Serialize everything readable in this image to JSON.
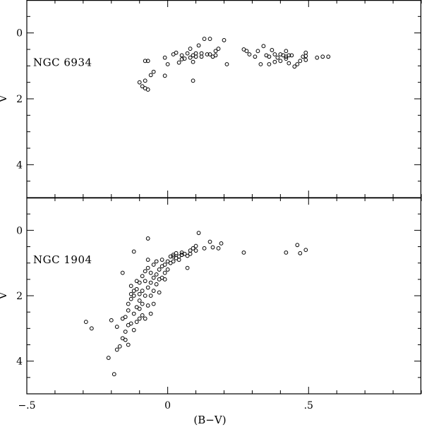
{
  "chart_data": [
    {
      "type": "scatter",
      "panel_label": "NGC 6934",
      "xlabel": "",
      "ylabel": "V",
      "xlim": [
        -0.5,
        0.9
      ],
      "ylim": [
        5,
        -1
      ],
      "y_ticks": [
        0,
        2,
        4
      ],
      "y_minor_step": 0.5,
      "x_ticks": [
        -0.5,
        0,
        0.5
      ],
      "x_minor_step": 0.1,
      "marker": "open-circle",
      "points": [
        [
          -0.08,
          0.85
        ],
        [
          -0.07,
          0.85
        ],
        [
          -0.1,
          1.5
        ],
        [
          -0.09,
          1.62
        ],
        [
          -0.08,
          1.68
        ],
        [
          -0.07,
          1.72
        ],
        [
          -0.08,
          1.45
        ],
        [
          -0.06,
          1.28
        ],
        [
          -0.05,
          1.18
        ],
        [
          -0.01,
          1.3
        ],
        [
          -0.01,
          0.75
        ],
        [
          0.0,
          0.95
        ],
        [
          0.02,
          0.65
        ],
        [
          0.03,
          0.6
        ],
        [
          0.04,
          0.9
        ],
        [
          0.05,
          0.68
        ],
        [
          0.05,
          0.8
        ],
        [
          0.06,
          0.78
        ],
        [
          0.07,
          0.62
        ],
        [
          0.08,
          0.48
        ],
        [
          0.08,
          0.75
        ],
        [
          0.09,
          0.68
        ],
        [
          0.09,
          0.88
        ],
        [
          0.1,
          0.62
        ],
        [
          0.1,
          0.72
        ],
        [
          0.11,
          0.38
        ],
        [
          0.12,
          0.62
        ],
        [
          0.12,
          0.72
        ],
        [
          0.13,
          0.18
        ],
        [
          0.14,
          0.65
        ],
        [
          0.15,
          0.18
        ],
        [
          0.15,
          0.65
        ],
        [
          0.16,
          0.72
        ],
        [
          0.17,
          0.55
        ],
        [
          0.17,
          0.68
        ],
        [
          0.18,
          0.48
        ],
        [
          0.2,
          0.22
        ],
        [
          0.21,
          0.95
        ],
        [
          0.09,
          1.45
        ],
        [
          0.27,
          0.5
        ],
        [
          0.28,
          0.55
        ],
        [
          0.29,
          0.65
        ],
        [
          0.31,
          0.72
        ],
        [
          0.32,
          0.55
        ],
        [
          0.33,
          0.95
        ],
        [
          0.34,
          0.4
        ],
        [
          0.35,
          0.68
        ],
        [
          0.36,
          0.72
        ],
        [
          0.36,
          0.95
        ],
        [
          0.37,
          0.52
        ],
        [
          0.38,
          0.65
        ],
        [
          0.38,
          0.88
        ],
        [
          0.39,
          0.75
        ],
        [
          0.4,
          0.65
        ],
        [
          0.4,
          0.85
        ],
        [
          0.41,
          0.68
        ],
        [
          0.42,
          0.55
        ],
        [
          0.42,
          0.72
        ],
        [
          0.42,
          0.78
        ],
        [
          0.43,
          0.68
        ],
        [
          0.43,
          0.92
        ],
        [
          0.44,
          0.68
        ],
        [
          0.45,
          1.02
        ],
        [
          0.46,
          0.95
        ],
        [
          0.47,
          0.85
        ],
        [
          0.48,
          0.72
        ],
        [
          0.49,
          0.6
        ],
        [
          0.49,
          0.82
        ],
        [
          0.49,
          0.7
        ],
        [
          0.53,
          0.75
        ],
        [
          0.55,
          0.72
        ],
        [
          0.57,
          0.72
        ]
      ]
    },
    {
      "type": "scatter",
      "panel_label": "NGC 1904",
      "xlabel": "(B−V)",
      "ylabel": "V",
      "xlim": [
        -0.5,
        0.9
      ],
      "ylim": [
        5,
        -1
      ],
      "y_ticks": [
        0,
        2,
        4
      ],
      "y_minor_step": 0.5,
      "x_ticks": [
        -0.5,
        0,
        0.5
      ],
      "x_minor_step": 0.1,
      "marker": "open-circle",
      "points": [
        [
          -0.29,
          2.8
        ],
        [
          -0.27,
          3.0
        ],
        [
          -0.21,
          3.9
        ],
        [
          -0.19,
          4.4
        ],
        [
          -0.18,
          3.65
        ],
        [
          -0.17,
          3.55
        ],
        [
          -0.16,
          3.3
        ],
        [
          -0.15,
          3.1
        ],
        [
          -0.15,
          2.65
        ],
        [
          -0.14,
          2.9
        ],
        [
          -0.14,
          2.45
        ],
        [
          -0.14,
          2.25
        ],
        [
          -0.13,
          2.1
        ],
        [
          -0.13,
          1.7
        ],
        [
          -0.12,
          2.55
        ],
        [
          -0.12,
          2.0
        ],
        [
          -0.12,
          1.85
        ],
        [
          -0.11,
          2.8
        ],
        [
          -0.11,
          2.35
        ],
        [
          -0.11,
          1.55
        ],
        [
          -0.1,
          2.4
        ],
        [
          -0.1,
          2.15
        ],
        [
          -0.1,
          1.95
        ],
        [
          -0.1,
          1.6
        ],
        [
          -0.09,
          2.6
        ],
        [
          -0.09,
          2.25
        ],
        [
          -0.09,
          1.85
        ],
        [
          -0.09,
          1.4
        ],
        [
          -0.08,
          2.7
        ],
        [
          -0.08,
          2.0
        ],
        [
          -0.08,
          1.55
        ],
        [
          -0.08,
          1.25
        ],
        [
          -0.07,
          2.3
        ],
        [
          -0.07,
          1.75
        ],
        [
          -0.07,
          1.15
        ],
        [
          -0.07,
          0.9
        ],
        [
          -0.06,
          2.55
        ],
        [
          -0.06,
          2.0
        ],
        [
          -0.06,
          1.6
        ],
        [
          -0.06,
          1.3
        ],
        [
          -0.05,
          2.25
        ],
        [
          -0.05,
          1.85
        ],
        [
          -0.05,
          1.45
        ],
        [
          -0.05,
          1.05
        ],
        [
          -0.04,
          1.65
        ],
        [
          -0.04,
          1.35
        ],
        [
          -0.04,
          0.95
        ],
        [
          -0.03,
          1.9
        ],
        [
          -0.03,
          1.5
        ],
        [
          -0.03,
          1.2
        ],
        [
          -0.02,
          1.45
        ],
        [
          -0.02,
          1.1
        ],
        [
          -0.02,
          0.9
        ],
        [
          -0.01,
          1.3
        ],
        [
          -0.01,
          1.05
        ],
        [
          0.0,
          1.2
        ],
        [
          0.0,
          0.95
        ],
        [
          0.01,
          1.0
        ],
        [
          0.01,
          0.8
        ],
        [
          0.02,
          0.95
        ],
        [
          0.02,
          0.75
        ],
        [
          0.03,
          0.85
        ],
        [
          0.03,
          0.7
        ],
        [
          0.04,
          0.8
        ],
        [
          0.05,
          0.75
        ],
        [
          0.05,
          0.68
        ],
        [
          0.06,
          0.72
        ],
        [
          0.07,
          0.78
        ],
        [
          0.08,
          0.62
        ],
        [
          0.08,
          0.72
        ],
        [
          0.09,
          0.55
        ],
        [
          0.1,
          0.48
        ],
        [
          0.1,
          0.62
        ],
        [
          0.11,
          0.08
        ],
        [
          0.13,
          0.55
        ],
        [
          0.15,
          0.35
        ],
        [
          0.16,
          0.52
        ],
        [
          0.18,
          0.55
        ],
        [
          0.19,
          0.4
        ],
        [
          0.27,
          0.68
        ],
        [
          0.42,
          0.68
        ],
        [
          0.46,
          0.45
        ],
        [
          0.47,
          0.7
        ],
        [
          0.49,
          0.6
        ],
        [
          -0.2,
          2.75
        ],
        [
          -0.18,
          2.95
        ],
        [
          -0.16,
          2.7
        ],
        [
          -0.13,
          2.85
        ],
        [
          -0.12,
          3.05
        ],
        [
          -0.1,
          2.7
        ],
        [
          -0.16,
          1.3
        ],
        [
          -0.12,
          0.65
        ],
        [
          -0.07,
          0.25
        ],
        [
          0.05,
          0.75
        ],
        [
          0.07,
          1.15
        ],
        [
          0.02,
          0.8
        ],
        [
          -0.01,
          1.5
        ],
        [
          0.04,
          0.9
        ],
        [
          -0.11,
          1.8
        ],
        [
          -0.13,
          1.95
        ],
        [
          -0.15,
          3.35
        ],
        [
          -0.14,
          3.5
        ]
      ]
    }
  ]
}
